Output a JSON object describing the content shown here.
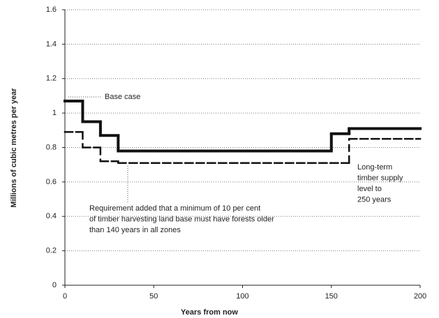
{
  "chart_data": {
    "type": "step",
    "xlabel": "Years from now",
    "ylabel": "Millions of cubic metres per year",
    "xlim": [
      0,
      200
    ],
    "xticks": [
      0,
      50,
      100,
      150,
      200
    ],
    "ylim": [
      0,
      1.6
    ],
    "yticks": [
      0,
      0.2,
      0.4,
      0.6,
      0.8,
      1,
      1.2,
      1.4,
      1.6
    ],
    "grid": true,
    "series": [
      {
        "name": "Base case",
        "color": "#111111",
        "style": "solid",
        "x": [
          0,
          10,
          20,
          30,
          150,
          160
        ],
        "values": [
          1.07,
          0.95,
          0.87,
          0.78,
          0.88,
          0.91
        ]
      },
      {
        "name": "Requirement added",
        "color": "#111111",
        "style": "dashed",
        "x": [
          0,
          10,
          20,
          30,
          160
        ],
        "values": [
          0.89,
          0.8,
          0.72,
          0.71,
          0.85
        ]
      }
    ],
    "annotations": [
      {
        "lines": [
          "Base case"
        ]
      },
      {
        "lines": [
          "Requirement added that a minimum of 10 per cent",
          "of timber harvesting land base must have forests older",
          "than 140 years in all zones"
        ]
      },
      {
        "lines": [
          "Long-term",
          "timber supply",
          "level to",
          "250 years"
        ]
      }
    ]
  }
}
